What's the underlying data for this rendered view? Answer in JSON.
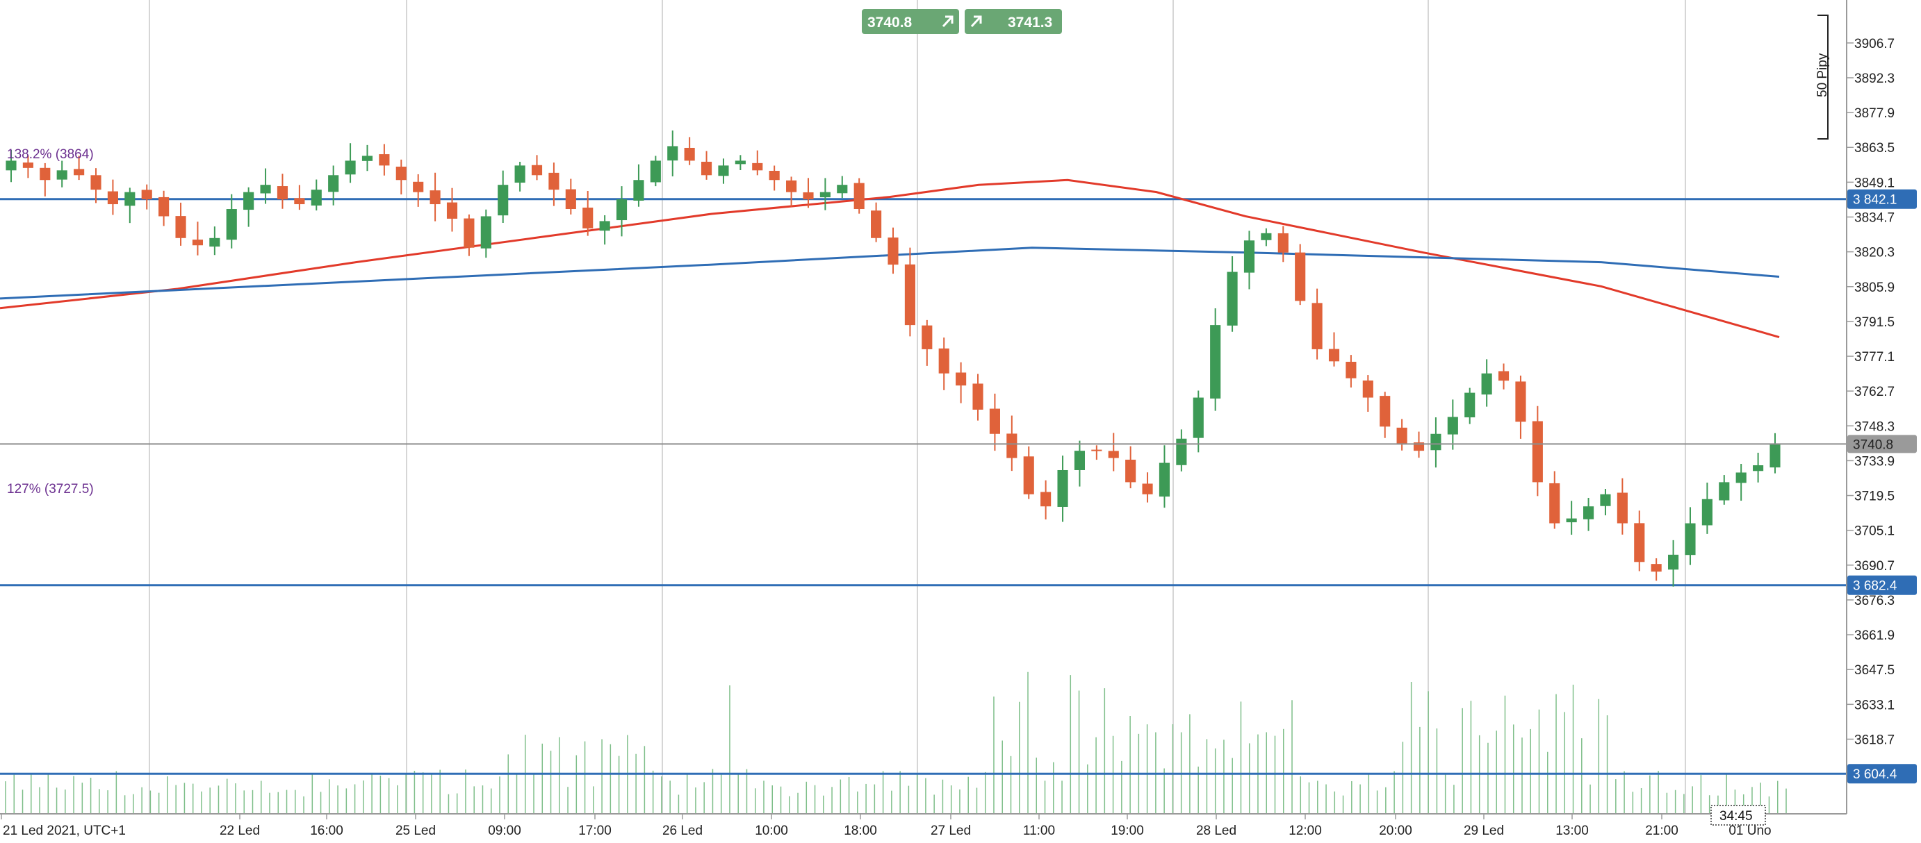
{
  "colors": {
    "bull": "#3d9a56",
    "bear": "#e0623a",
    "volume": "#7fbf8a",
    "ma_fast": "#e23a2a",
    "ma_slow": "#2f6db5",
    "hline": "#2f6db5",
    "grid": "#c8c8c8",
    "fib_text": "#6b2f8f",
    "button": "#6aa774"
  },
  "header": {
    "sell_price": "3740.8",
    "buy_price": "3741.3",
    "sell_arrow": "arrow-up-right-icon",
    "buy_arrow": "arrow-up-right-icon"
  },
  "annotations": {
    "fib_upper": "138.2% (3864)",
    "fib_lower": "127% (3727.5)",
    "pips_scale": "50 Pipy",
    "timer": "34:45"
  },
  "price_tags": {
    "current": "3740.8",
    "hlines": [
      "3 842.1",
      "3 682.4",
      "3 604.4"
    ]
  },
  "chart_data": {
    "type": "candlestick",
    "ylim": [
      3597,
      3917
    ],
    "grid": true,
    "y_ticks": [
      "3906.7",
      "3892.3",
      "3877.9",
      "3863.5",
      "3849.1",
      "3834.7",
      "3820.3",
      "3805.9",
      "3791.5",
      "3777.1",
      "3762.7",
      "3748.3",
      "3733.9",
      "3719.5",
      "3705.1",
      "3690.7",
      "3676.3",
      "3661.9",
      "3647.5",
      "3633.1",
      "3618.7"
    ],
    "x_ticks": [
      "21 Led 2021, UTC+1",
      "22 Led",
      "16:00",
      "25 Led",
      "09:00",
      "17:00",
      "26 Led",
      "10:00",
      "18:00",
      "27 Led",
      "11:00",
      "19:00",
      "28 Led",
      "12:00",
      "20:00",
      "29 Led",
      "13:00",
      "21:00",
      "01 Uno"
    ],
    "horizontal_lines": [
      3842.1,
      3682.4,
      3604.4
    ],
    "current_price": 3740.8,
    "close_path": [
      3858,
      3855,
      3850,
      3854,
      3852,
      3846,
      3840,
      3845,
      3842,
      3835,
      3826,
      3823,
      3826,
      3838,
      3845,
      3848,
      3842,
      3840,
      3846,
      3852,
      3858,
      3860,
      3856,
      3850,
      3845,
      3840,
      3834,
      3822,
      3835,
      3848,
      3856,
      3852,
      3846,
      3838,
      3830,
      3833,
      3842,
      3850,
      3858,
      3864,
      3858,
      3852,
      3856,
      3858,
      3854,
      3850,
      3845,
      3842,
      3845,
      3848,
      3838,
      3826,
      3815,
      3790,
      3780,
      3770,
      3765,
      3755,
      3745,
      3735,
      3720,
      3715,
      3730,
      3738,
      3738,
      3735,
      3725,
      3720,
      3733,
      3743,
      3760,
      3790,
      3812,
      3825,
      3828,
      3820,
      3800,
      3780,
      3775,
      3768,
      3760,
      3748,
      3741,
      3738,
      3745,
      3752,
      3762,
      3770,
      3767,
      3750,
      3725,
      3708,
      3710,
      3715,
      3720,
      3708,
      3692,
      3688,
      3695,
      3708,
      3718,
      3725,
      3729,
      3732,
      3741
    ],
    "moving_averages": [
      {
        "key": "ma_fast",
        "points": [
          [
            0,
            3797
          ],
          [
            0.1,
            3805
          ],
          [
            0.2,
            3816
          ],
          [
            0.3,
            3826
          ],
          [
            0.4,
            3836
          ],
          [
            0.5,
            3843
          ],
          [
            0.55,
            3848
          ],
          [
            0.6,
            3850
          ],
          [
            0.65,
            3845
          ],
          [
            0.7,
            3835
          ],
          [
            0.8,
            3820
          ],
          [
            0.9,
            3806
          ],
          [
            1.0,
            3785
          ]
        ]
      },
      {
        "key": "ma_slow",
        "points": [
          [
            0,
            3801
          ],
          [
            0.2,
            3808
          ],
          [
            0.4,
            3815
          ],
          [
            0.58,
            3822
          ],
          [
            0.7,
            3820
          ],
          [
            0.8,
            3818
          ],
          [
            0.9,
            3816
          ],
          [
            1.0,
            3810
          ]
        ]
      }
    ]
  }
}
